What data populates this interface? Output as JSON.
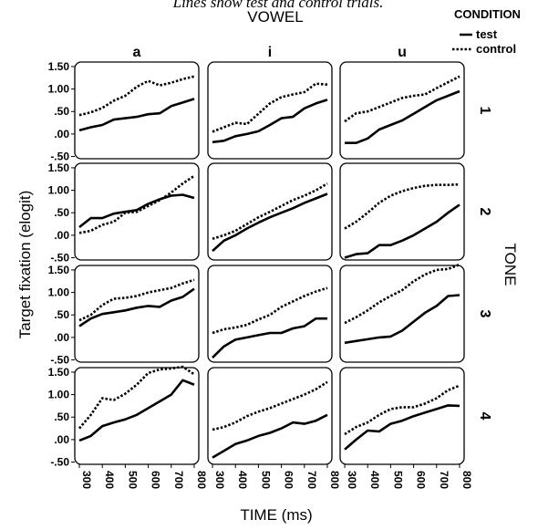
{
  "title": "Lines show test and control trials.",
  "legend": {
    "title": "CONDITION",
    "entries": [
      {
        "label": "test",
        "style": "solid"
      },
      {
        "label": "control",
        "style": "dotted"
      }
    ]
  },
  "chart_data": {
    "type": "line",
    "col_facet_title": "VOWEL",
    "row_facet_title": "TONE",
    "xlabel": "TIME (ms)",
    "ylabel": "Target fixation (elogit)",
    "ylim": [
      -0.55,
      1.6
    ],
    "xlim": [
      280,
      820
    ],
    "x_ticks": [
      "300",
      "400",
      "500",
      "600",
      "700",
      "800"
    ],
    "y_ticks": [
      "1.50",
      "1.00",
      ".50",
      ".00",
      "-.50"
    ],
    "y_tick_values": [
      1.5,
      1.0,
      0.5,
      0.0,
      -0.5
    ],
    "columns": [
      "a",
      "i",
      "u"
    ],
    "rows": [
      "1",
      "2",
      "3",
      "4"
    ],
    "x": [
      300,
      350,
      400,
      450,
      500,
      550,
      600,
      650,
      700,
      750,
      800
    ],
    "panels": [
      {
        "row": "1",
        "col": "a",
        "series": [
          {
            "name": "test",
            "values": [
              0.08,
              0.15,
              0.2,
              0.32,
              0.35,
              0.38,
              0.44,
              0.46,
              0.62,
              0.7,
              0.78
            ]
          },
          {
            "name": "control",
            "values": [
              0.42,
              0.48,
              0.58,
              0.74,
              0.85,
              1.05,
              1.18,
              1.08,
              1.14,
              1.22,
              1.28
            ]
          }
        ]
      },
      {
        "row": "1",
        "col": "i",
        "series": [
          {
            "name": "test",
            "values": [
              -0.18,
              -0.15,
              -0.05,
              0.0,
              0.06,
              0.2,
              0.35,
              0.38,
              0.57,
              0.68,
              0.76
            ]
          },
          {
            "name": "control",
            "values": [
              0.05,
              0.15,
              0.25,
              0.22,
              0.45,
              0.68,
              0.82,
              0.88,
              0.93,
              1.12,
              1.1
            ]
          }
        ]
      },
      {
        "row": "1",
        "col": "u",
        "series": [
          {
            "name": "test",
            "values": [
              -0.2,
              -0.2,
              -0.1,
              0.1,
              0.2,
              0.3,
              0.45,
              0.6,
              0.75,
              0.85,
              0.95
            ]
          },
          {
            "name": "control",
            "values": [
              0.28,
              0.46,
              0.5,
              0.6,
              0.7,
              0.8,
              0.85,
              0.88,
              1.02,
              1.15,
              1.28
            ]
          }
        ]
      },
      {
        "row": "2",
        "col": "a",
        "series": [
          {
            "name": "test",
            "values": [
              0.18,
              0.38,
              0.38,
              0.48,
              0.52,
              0.56,
              0.7,
              0.8,
              0.88,
              0.9,
              0.83
            ]
          },
          {
            "name": "control",
            "values": [
              0.05,
              0.1,
              0.23,
              0.3,
              0.5,
              0.52,
              0.65,
              0.78,
              0.95,
              1.15,
              1.32
            ]
          }
        ]
      },
      {
        "row": "2",
        "col": "i",
        "series": [
          {
            "name": "test",
            "values": [
              -0.35,
              -0.12,
              0.0,
              0.15,
              0.28,
              0.4,
              0.5,
              0.6,
              0.72,
              0.82,
              0.92
            ]
          },
          {
            "name": "control",
            "values": [
              -0.08,
              0.0,
              0.1,
              0.25,
              0.4,
              0.52,
              0.65,
              0.78,
              0.88,
              1.0,
              1.15
            ]
          }
        ]
      },
      {
        "row": "2",
        "col": "u",
        "series": [
          {
            "name": "test",
            "values": [
              -0.5,
              -0.42,
              -0.4,
              -0.22,
              -0.22,
              -0.12,
              0.0,
              0.15,
              0.3,
              0.5,
              0.68
            ]
          },
          {
            "name": "control",
            "values": [
              0.15,
              0.3,
              0.5,
              0.72,
              0.88,
              0.98,
              1.05,
              1.1,
              1.12,
              1.12,
              1.13
            ]
          }
        ]
      },
      {
        "row": "3",
        "col": "a",
        "series": [
          {
            "name": "test",
            "values": [
              0.25,
              0.42,
              0.52,
              0.56,
              0.6,
              0.66,
              0.7,
              0.68,
              0.82,
              0.9,
              1.08
            ]
          },
          {
            "name": "control",
            "values": [
              0.38,
              0.5,
              0.72,
              0.86,
              0.88,
              0.92,
              1.0,
              1.05,
              1.1,
              1.2,
              1.28
            ]
          }
        ]
      },
      {
        "row": "3",
        "col": "i",
        "series": [
          {
            "name": "test",
            "values": [
              -0.45,
              -0.2,
              -0.05,
              0.0,
              0.05,
              0.1,
              0.1,
              0.2,
              0.25,
              0.42,
              0.42
            ]
          },
          {
            "name": "control",
            "values": [
              0.1,
              0.18,
              0.22,
              0.28,
              0.4,
              0.5,
              0.68,
              0.8,
              0.92,
              1.02,
              1.1
            ]
          }
        ]
      },
      {
        "row": "3",
        "col": "u",
        "series": [
          {
            "name": "test",
            "values": [
              -0.12,
              -0.08,
              -0.04,
              0.0,
              0.02,
              0.15,
              0.35,
              0.55,
              0.7,
              0.92,
              0.94
            ]
          },
          {
            "name": "control",
            "values": [
              0.32,
              0.45,
              0.6,
              0.78,
              0.92,
              1.05,
              1.25,
              1.4,
              1.5,
              1.52,
              1.62
            ]
          }
        ]
      },
      {
        "row": "4",
        "col": "a",
        "series": [
          {
            "name": "test",
            "values": [
              -0.02,
              0.08,
              0.3,
              0.38,
              0.45,
              0.55,
              0.7,
              0.85,
              1.0,
              1.32,
              1.22
            ]
          },
          {
            "name": "control",
            "values": [
              0.25,
              0.55,
              0.92,
              0.88,
              1.02,
              1.22,
              1.48,
              1.56,
              1.58,
              1.62,
              1.45
            ]
          }
        ]
      },
      {
        "row": "4",
        "col": "i",
        "series": [
          {
            "name": "test",
            "values": [
              -0.4,
              -0.25,
              -0.1,
              -0.02,
              0.08,
              0.15,
              0.25,
              0.38,
              0.35,
              0.42,
              0.55
            ]
          },
          {
            "name": "control",
            "values": [
              0.22,
              0.28,
              0.38,
              0.52,
              0.62,
              0.7,
              0.8,
              0.9,
              1.0,
              1.12,
              1.28
            ]
          }
        ]
      },
      {
        "row": "4",
        "col": "u",
        "series": [
          {
            "name": "test",
            "values": [
              -0.22,
              0.0,
              0.2,
              0.18,
              0.35,
              0.42,
              0.52,
              0.6,
              0.68,
              0.76,
              0.75
            ]
          },
          {
            "name": "control",
            "values": [
              0.12,
              0.28,
              0.38,
              0.55,
              0.68,
              0.72,
              0.72,
              0.8,
              0.92,
              1.1,
              1.2
            ]
          }
        ]
      }
    ]
  }
}
